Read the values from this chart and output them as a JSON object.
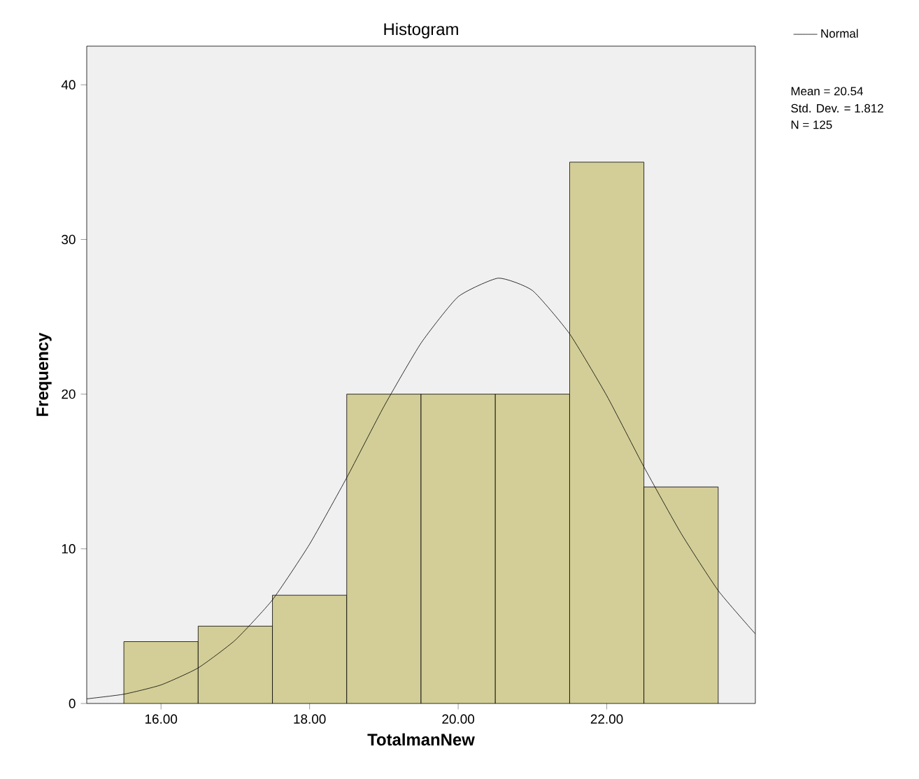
{
  "chart_data": {
    "type": "histogram",
    "title": "Histogram",
    "xlabel": "TotalmanNew",
    "ylabel": "Frequency",
    "bins": [
      15.5,
      16.5,
      17.5,
      18.5,
      19.5,
      20.5,
      21.5,
      22.5,
      23.5
    ],
    "values": [
      4,
      5,
      7,
      20,
      20,
      20,
      35,
      14
    ],
    "color": "#d3ce97",
    "series": [
      {
        "type": "line",
        "name": "Normal",
        "color": "#000000",
        "x": [
          15,
          15.5,
          16,
          16.5,
          17,
          17.5,
          18,
          18.5,
          19,
          19.5,
          20,
          20.54,
          21,
          21.5,
          22,
          22.5,
          23,
          23.5,
          24
        ],
        "values": [
          0.3,
          0.6,
          1.2,
          2.3,
          4.1,
          6.7,
          10.3,
          14.6,
          19.2,
          23.3,
          26.3,
          27.5,
          26.7,
          23.9,
          19.9,
          15.3,
          11,
          7.3,
          4.5
        ]
      }
    ],
    "xlim": [
      15,
      24
    ],
    "ylim": [
      0,
      42.5
    ],
    "xticks": [
      {
        "value": 16,
        "label": "16.00"
      },
      {
        "value": 18,
        "label": "18.00"
      },
      {
        "value": 20,
        "label": "20.00"
      },
      {
        "value": 22,
        "label": "22.00"
      }
    ],
    "yticks": [
      0,
      10,
      20,
      30,
      40
    ],
    "legend": "top right",
    "annotations": [
      "Mean = 20.54",
      "Std. Dev. = 1.812",
      "N = 125"
    ]
  }
}
